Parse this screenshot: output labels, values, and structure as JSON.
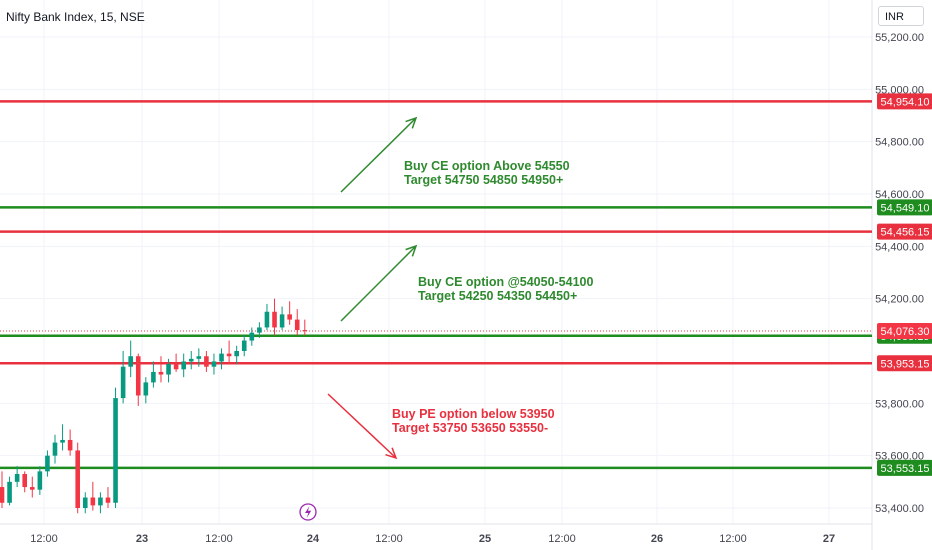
{
  "header": {
    "title": "Nifty Bank Index, 15, NSE",
    "currency": "INR"
  },
  "colors": {
    "up": "#089981",
    "down": "#f23645",
    "red_line": "#e8303f",
    "green_line": "#1e8c1e",
    "text": "#131722",
    "axis_text": "#434651"
  },
  "annotations": [
    {
      "id": "buy-ce-above",
      "lines": [
        "Buy CE option Above 54550",
        "Target 54750 54850 54950+"
      ],
      "color": "#2f8a2f"
    },
    {
      "id": "buy-ce-range",
      "lines": [
        "Buy CE option @54050-54100",
        "Target 54250 54350 54450+"
      ],
      "color": "#2f8a2f"
    },
    {
      "id": "buy-pe-below",
      "lines": [
        "Buy PE option below 53950",
        "Target 53750 53650 53550-"
      ],
      "color": "#e8303f"
    }
  ],
  "chart_data": {
    "type": "candlestick",
    "title": "Nifty Bank Index, 15, NSE",
    "y_axis": {
      "ticks": [
        "55,200.00",
        "55,000.00",
        "54,800.00",
        "54,600.00",
        "54,400.00",
        "54,200.00",
        "53,800.00",
        "53,600.00",
        "53,400.00"
      ],
      "tick_values": [
        55200,
        55000,
        54800,
        54600,
        54400,
        54200,
        53800,
        53600,
        53400
      ],
      "range": [
        53340,
        55290
      ]
    },
    "x_axis": {
      "ticks": [
        "12:00",
        "23",
        "12:00",
        "24",
        "12:00",
        "25",
        "12:00",
        "26",
        "12:00",
        "27"
      ]
    },
    "horizontal_lines": [
      {
        "value": 54954.1,
        "label": "54,954.10",
        "color": "red"
      },
      {
        "value": 54549.1,
        "label": "54,549.10",
        "color": "green"
      },
      {
        "value": 54456.15,
        "label": "54,456.15",
        "color": "red"
      },
      {
        "value": 54058.15,
        "label": "54,058.15",
        "color": "green"
      },
      {
        "value": 53953.15,
        "label": "53,953.15",
        "color": "red"
      },
      {
        "value": 53553.15,
        "label": "53,553.15",
        "color": "green"
      }
    ],
    "last_price": {
      "value": 54076.3,
      "label": "54,076.30"
    },
    "candles": [
      [
        53480,
        53540,
        53400,
        53420
      ],
      [
        53420,
        53520,
        53410,
        53500
      ],
      [
        53500,
        53560,
        53480,
        53530
      ],
      [
        53530,
        53540,
        53460,
        53480
      ],
      [
        53480,
        53520,
        53440,
        53470
      ],
      [
        53470,
        53560,
        53450,
        53540
      ],
      [
        53540,
        53620,
        53520,
        53600
      ],
      [
        53600,
        53680,
        53570,
        53650
      ],
      [
        53650,
        53720,
        53620,
        53660
      ],
      [
        53660,
        53700,
        53600,
        53620
      ],
      [
        53620,
        53650,
        53380,
        53400
      ],
      [
        53400,
        53460,
        53380,
        53440
      ],
      [
        53440,
        53500,
        53390,
        53410
      ],
      [
        53410,
        53460,
        53380,
        53440
      ],
      [
        53440,
        53480,
        53400,
        53420
      ],
      [
        53420,
        53860,
        53400,
        53820
      ],
      [
        53820,
        54000,
        53800,
        53940
      ],
      [
        53940,
        54040,
        53900,
        53980
      ],
      [
        53980,
        53990,
        53790,
        53830
      ],
      [
        53830,
        53900,
        53800,
        53880
      ],
      [
        53880,
        53960,
        53860,
        53920
      ],
      [
        53920,
        53980,
        53880,
        53910
      ],
      [
        53910,
        53970,
        53880,
        53950
      ],
      [
        53950,
        53990,
        53920,
        53930
      ],
      [
        53930,
        53990,
        53900,
        53960
      ],
      [
        53960,
        54000,
        53930,
        53970
      ],
      [
        53970,
        54010,
        53940,
        53980
      ],
      [
        53980,
        54000,
        53920,
        53940
      ],
      [
        53940,
        53990,
        53910,
        53960
      ],
      [
        53960,
        54010,
        53930,
        53990
      ],
      [
        53990,
        54040,
        53950,
        53980
      ],
      [
        53980,
        54020,
        53950,
        54000
      ],
      [
        54000,
        54060,
        53980,
        54040
      ],
      [
        54040,
        54090,
        54020,
        54070
      ],
      [
        54070,
        54110,
        54050,
        54090
      ],
      [
        54090,
        54180,
        54080,
        54150
      ],
      [
        54150,
        54200,
        54060,
        54090
      ],
      [
        54090,
        54170,
        54080,
        54140
      ],
      [
        54140,
        54190,
        54100,
        54120
      ],
      [
        54120,
        54160,
        54060,
        54080
      ],
      [
        54080,
        54120,
        54060,
        54076
      ]
    ]
  }
}
